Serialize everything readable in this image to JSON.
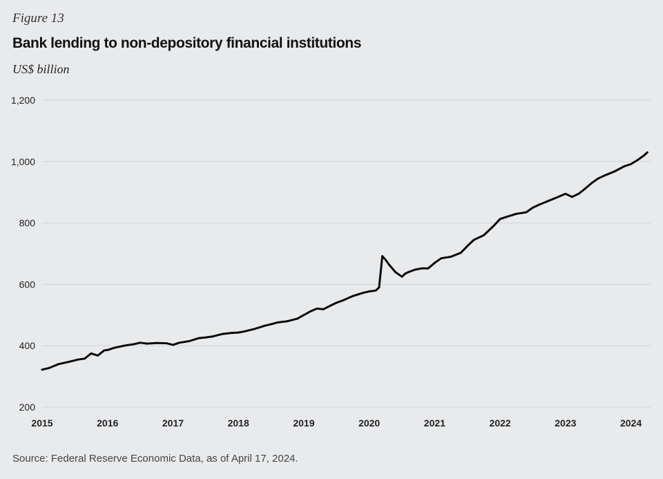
{
  "header": {
    "figure_label": "Figure 13",
    "title": "Bank lending to non-depository financial institutions",
    "unit": "US$ billion"
  },
  "footer": {
    "source": "Source: Federal Reserve Economic Data, as of April 17, 2024."
  },
  "colors": {
    "background": "#e9eaec",
    "line": "#0a0a0a",
    "grid": "#d3d4d7"
  },
  "chart_data": {
    "type": "line",
    "title": "Bank lending to non-depository financial institutions",
    "ylabel": "US$ billion",
    "xlabel": "",
    "xlim": [
      2015.0,
      2024.3
    ],
    "ylim": [
      200,
      1200
    ],
    "y_ticks": [
      200,
      400,
      600,
      800,
      1000,
      1200
    ],
    "y_tick_labels": [
      "200",
      "400",
      "600",
      "800",
      "1,000",
      "1,200"
    ],
    "x_ticks": [
      2015,
      2016,
      2017,
      2018,
      2019,
      2020,
      2021,
      2022,
      2023,
      2024
    ],
    "x_tick_labels": [
      "2015",
      "2016",
      "2017",
      "2018",
      "2019",
      "2020",
      "2021",
      "2022",
      "2023",
      "2024"
    ],
    "grid": "horizontal",
    "series": [
      {
        "x": [
          2015.0,
          2015.1,
          2015.25,
          2015.4,
          2015.55,
          2015.65,
          2015.75,
          2015.85,
          2015.95,
          2016.0,
          2016.1,
          2016.25,
          2016.4,
          2016.5,
          2016.6,
          2016.75,
          2016.9,
          2017.0,
          2017.1,
          2017.25,
          2017.4,
          2017.5,
          2017.6,
          2017.75,
          2017.9,
          2018.0,
          2018.1,
          2018.25,
          2018.4,
          2018.5,
          2018.6,
          2018.75,
          2018.9,
          2019.0,
          2019.1,
          2019.2,
          2019.3,
          2019.4,
          2019.5,
          2019.6,
          2019.75,
          2019.9,
          2020.0,
          2020.1,
          2020.15,
          2020.2,
          2020.25,
          2020.3,
          2020.4,
          2020.5,
          2020.55,
          2020.6,
          2020.7,
          2020.8,
          2020.9,
          2021.0,
          2021.1,
          2021.25,
          2021.4,
          2021.5,
          2021.6,
          2021.75,
          2021.9,
          2022.0,
          2022.1,
          2022.25,
          2022.4,
          2022.5,
          2022.6,
          2022.75,
          2022.9,
          2023.0,
          2023.1,
          2023.2,
          2023.3,
          2023.4,
          2023.5,
          2023.6,
          2023.75,
          2023.9,
          2024.0,
          2024.1,
          2024.2,
          2024.25
        ],
        "y": [
          322,
          327,
          340,
          347,
          355,
          358,
          375,
          368,
          385,
          386,
          393,
          400,
          405,
          410,
          407,
          409,
          408,
          403,
          410,
          415,
          425,
          427,
          430,
          438,
          442,
          443,
          447,
          455,
          465,
          470,
          476,
          480,
          488,
          500,
          512,
          521,
          519,
          530,
          540,
          548,
          562,
          572,
          577,
          580,
          590,
          692,
          680,
          665,
          640,
          625,
          635,
          640,
          648,
          652,
          652,
          670,
          685,
          690,
          703,
          725,
          745,
          760,
          790,
          813,
          820,
          830,
          835,
          850,
          860,
          873,
          886,
          895,
          885,
          895,
          912,
          930,
          945,
          955,
          968,
          985,
          992,
          1005,
          1020,
          1030
        ]
      }
    ]
  }
}
